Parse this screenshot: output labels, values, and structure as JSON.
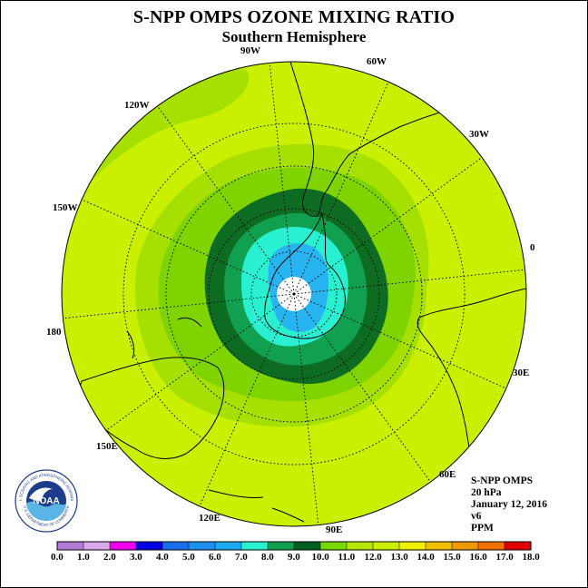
{
  "title": "S-NPP OMPS OZONE MIXING RATIO",
  "subtitle": "Southern Hemisphere",
  "longitude_labels": [
    "90W",
    "60W",
    "30W",
    "0",
    "30E",
    "60E",
    "90E",
    "120E",
    "150E",
    "180",
    "150W",
    "120W"
  ],
  "info": {
    "instrument": "S-NPP OMPS",
    "level": "20 hPa",
    "date": "January 12, 2016",
    "version": "v6",
    "units": "PPM"
  },
  "colorbar": {
    "tick_labels": [
      "0.0",
      "1.0",
      "2.0",
      "3.0",
      "4.0",
      "5.0",
      "6.0",
      "7.0",
      "8.0",
      "9.0",
      "10.0",
      "11.0",
      "12.0",
      "13.0",
      "14.0",
      "15.0",
      "16.0",
      "17.0",
      "18.0"
    ],
    "colors": [
      "#b07cd6",
      "#d8a8e8",
      "#ee00ee",
      "#0000e0",
      "#1a6fe8",
      "#1e90f0",
      "#1eaaf0",
      "#28c8f0",
      "#28f0d0",
      "#10a050",
      "#006020",
      "#78d800",
      "#b4e600",
      "#ccee00",
      "#f0f000",
      "#f0c000",
      "#f09800",
      "#f07000",
      "#f04000",
      "#e00000",
      "#8c5a3c"
    ],
    "bins": [
      {
        "range": "0-1",
        "color": "#b07cd6"
      },
      {
        "range": "1-2",
        "color": "#d8a8e8"
      },
      {
        "range": "2-3",
        "color": "#ee00ee"
      },
      {
        "range": "3-4",
        "color": "#0000e0"
      },
      {
        "range": "4-5",
        "color": "#1a6fe8"
      },
      {
        "range": "5-6",
        "color": "#1e90f0"
      },
      {
        "range": "6-7",
        "color": "#1eaaf0"
      },
      {
        "range": "7-8",
        "color": "#28f0d0"
      },
      {
        "range": "8-9",
        "color": "#10a050"
      },
      {
        "range": "9-10",
        "color": "#006020"
      },
      {
        "range": "10-11",
        "color": "#78d800"
      },
      {
        "range": "11-12",
        "color": "#b4e600"
      },
      {
        "range": "12-13",
        "color": "#ccee00"
      },
      {
        "range": "13-14",
        "color": "#f0f000"
      },
      {
        "range": "14-15",
        "color": "#f0c000"
      },
      {
        "range": "15-16",
        "color": "#f09800"
      },
      {
        "range": "16-17",
        "color": "#f07000"
      },
      {
        "range": "17-18",
        "color": "#e00000"
      }
    ]
  },
  "map_colors": {
    "background": "#c8f000",
    "level_11": "#a6e000",
    "level_10": "#7fd400",
    "level_9": "#0d6c22",
    "level_8": "#10a050",
    "level_7": "#28f0d0",
    "level_6": "#28b4f0",
    "polar_hole": "#ffffff",
    "upper_left_patch": "#a6e000"
  },
  "logo": {
    "text": "NOAA",
    "ring_text": "NATIONAL OCEANIC AND ATMOSPHERIC ADMINISTRATION",
    "ring_text_bottom": "U.S. DEPARTMENT OF COMMERCE"
  }
}
